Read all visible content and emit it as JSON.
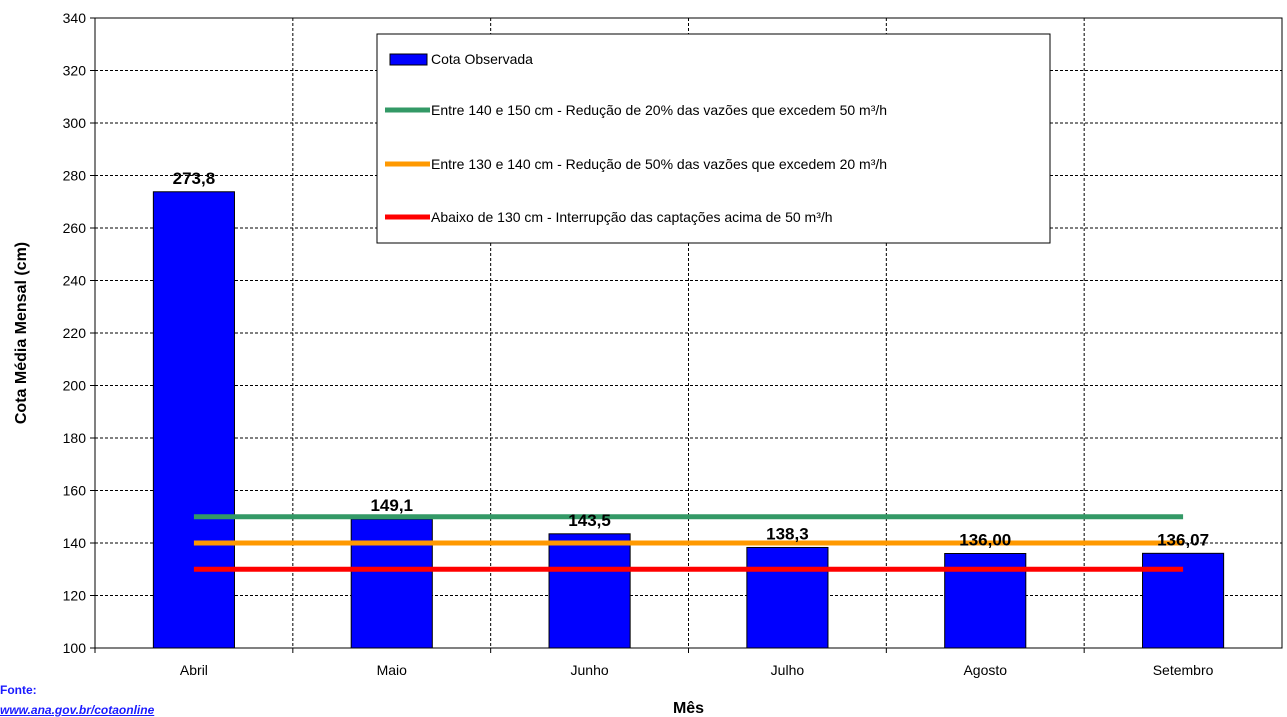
{
  "chart_data": {
    "type": "bar",
    "categories": [
      "Abril",
      "Maio",
      "Junho",
      "Julho",
      "Agosto",
      "Setembro"
    ],
    "series": [
      {
        "name": "Cota Observada",
        "values": [
          273.8,
          149.1,
          143.5,
          138.3,
          136.0,
          136.07
        ],
        "color": "#0000ff"
      }
    ],
    "data_labels": [
      "273,8",
      "149,1",
      "143,5",
      "138,3",
      "136,00",
      "136,07"
    ],
    "reference_lines": [
      {
        "name": "Entre 140 e 150 cm - Redução de 20% das vazões que excedem 50 m³/h",
        "value": 150,
        "color": "#339966"
      },
      {
        "name": "Entre 130 e 140 cm - Redução de 50% das vazões que excedem 20 m³/h",
        "value": 140,
        "color": "#ff9900"
      },
      {
        "name": "Abaixo de 130 cm - Interrupção das captações acima de 50 m³/h",
        "value": 130,
        "color": "#ff0000"
      }
    ],
    "xlabel": "Mês",
    "ylabel": "Cota Média Mensal (cm)",
    "ylim": [
      100,
      340
    ],
    "yticks": [
      100,
      120,
      140,
      160,
      180,
      200,
      220,
      240,
      260,
      280,
      300,
      320,
      340
    ],
    "grid": true,
    "legend_position": "top-right"
  },
  "source": {
    "label": "Fonte:",
    "url": "www.ana.gov.br/cotaonline"
  }
}
